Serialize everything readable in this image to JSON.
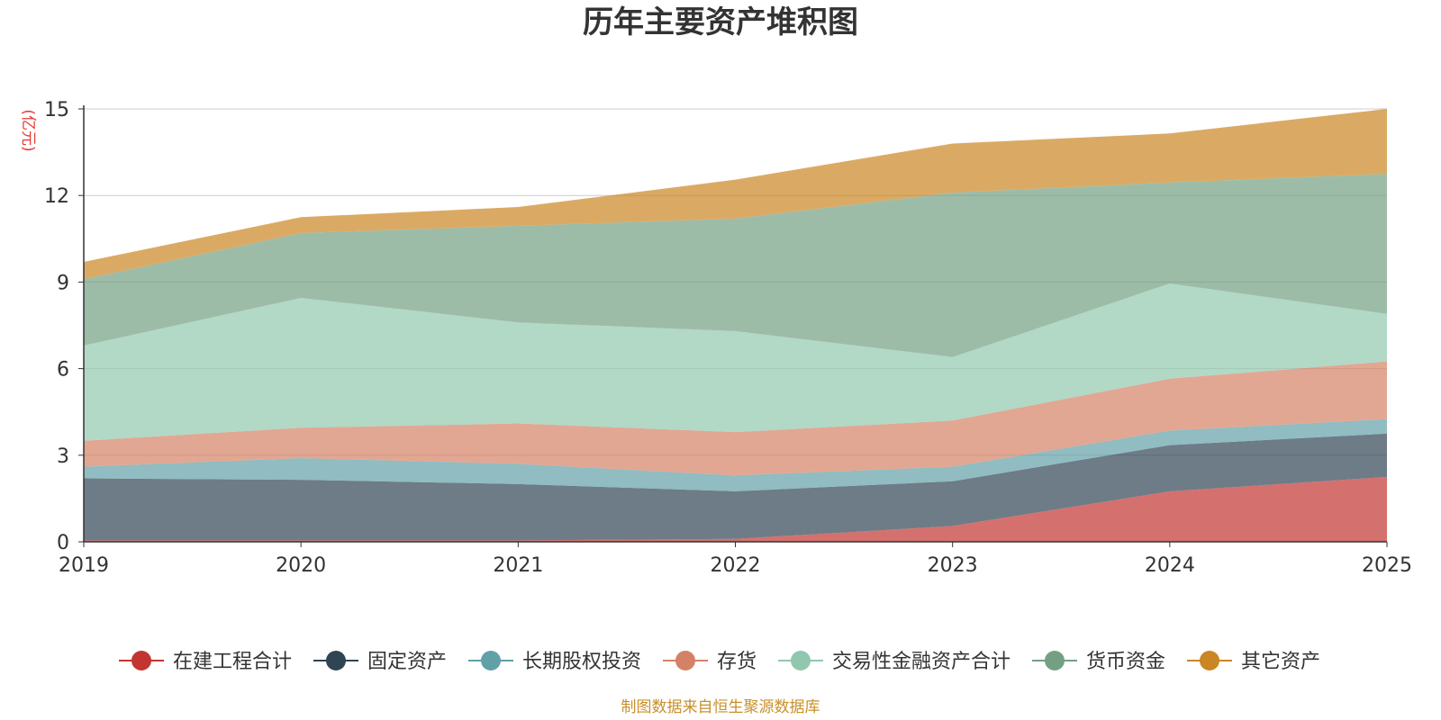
{
  "chart_data": {
    "type": "area",
    "stacked": true,
    "title": "历年主要资产堆积图",
    "ylabel": "(亿元)",
    "xlabel": "",
    "x": [
      "2019",
      "2020",
      "2021",
      "2022",
      "2023",
      "2024",
      "2025"
    ],
    "ylim": [
      0,
      15
    ],
    "yticks": [
      0,
      3,
      6,
      9,
      12,
      15
    ],
    "grid": true,
    "legend_position": "bottom",
    "series": [
      {
        "name": "在建工程合计",
        "color": "#c23531",
        "values": [
          0.05,
          0.05,
          0.05,
          0.1,
          0.55,
          1.75,
          2.25
        ]
      },
      {
        "name": "固定资产",
        "color": "#2f4554",
        "values": [
          2.15,
          2.1,
          1.95,
          1.65,
          1.55,
          1.6,
          1.5
        ]
      },
      {
        "name": "长期股权投资",
        "color": "#61a0a8",
        "values": [
          0.4,
          0.75,
          0.7,
          0.55,
          0.5,
          0.5,
          0.5
        ]
      },
      {
        "name": "存货",
        "color": "#d48265",
        "values": [
          0.9,
          1.05,
          1.4,
          1.5,
          1.6,
          1.8,
          2.0
        ]
      },
      {
        "name": "交易性金融资产合计",
        "color": "#91c7ae",
        "values": [
          3.3,
          4.5,
          3.5,
          3.5,
          2.2,
          3.3,
          1.65
        ]
      },
      {
        "name": "货币资金",
        "color": "#749f83",
        "values": [
          2.3,
          2.25,
          3.35,
          3.9,
          5.7,
          3.5,
          4.85
        ]
      },
      {
        "name": "其它资产",
        "color": "#ca8622",
        "values": [
          0.6,
          0.55,
          0.65,
          1.35,
          1.7,
          1.7,
          2.25
        ]
      }
    ]
  },
  "footer": {
    "source": "制图数据来自恒生聚源数据库"
  }
}
